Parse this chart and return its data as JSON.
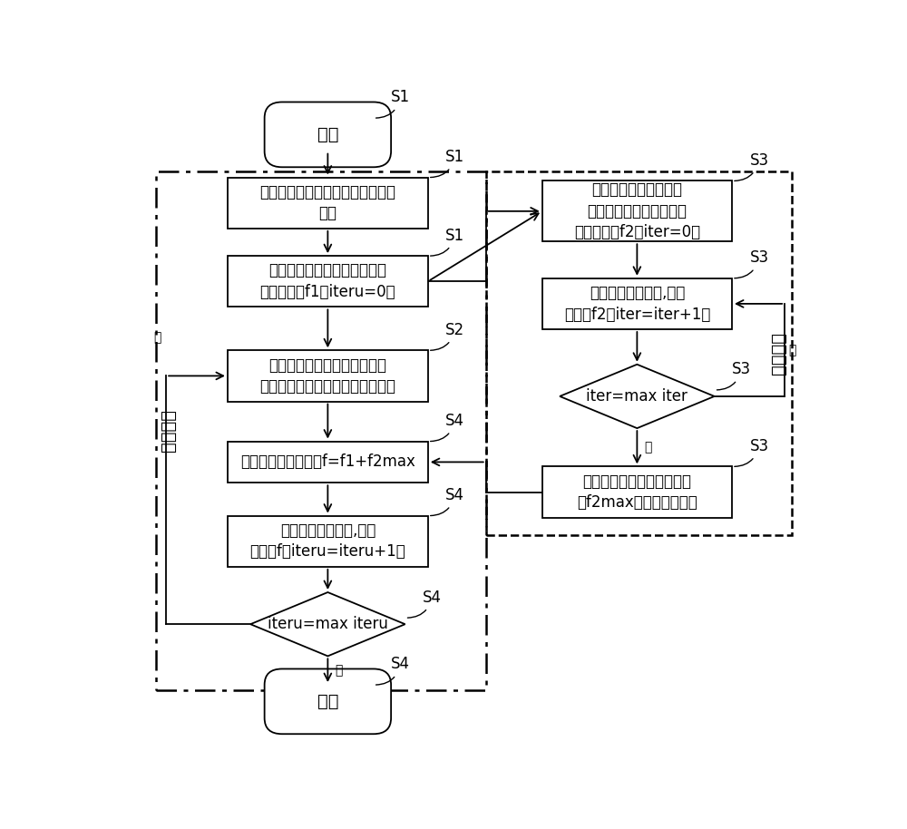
{
  "bg_color": "#ffffff",
  "line_color": "#000000",
  "text_color": "#000000",
  "start_text": "开始",
  "end_text": "结束",
  "s1_init_text": "初始化。输入待规划配电网络原始\n数据",
  "s1_upper_text": "初始化上层种群，计算每条染\n色体适应度f1，iteru=0。",
  "s2_recon_text": "按照每个染色体的划分方式和\n各个时段的平均负荷进行网络重构",
  "s4_update_text": "更新上层个体适应度f=f1+f2max",
  "s4_select_text": "选择、交叉、变异,更新\n适应度f，iteru=iteru+1。",
  "s4_diamond_text": "iteru=max iteru",
  "s3_lower_text": "初始化下层种群，根据\n每个时刻的潮流分布计算\n种群适应度f2，iter=0。",
  "s3_select_text": "选择、交叉、变异,更新\n适应度f2，iter=iter+1。",
  "s3_diamond_text": "iter=max iter",
  "s3_best_text": "选择最优秀的个体和其适应\n度f2max，下层划分结束",
  "upper_label": "上层划分",
  "lower_label": "下层划分",
  "yes_text": "是",
  "no_text": "否",
  "s1_label": "S1",
  "s2_label": "S2",
  "s3_label": "S3",
  "s4_label": "S4",
  "font_size_main": 12,
  "font_size_label": 12,
  "font_size_small": 10,
  "font_size_side": 14
}
